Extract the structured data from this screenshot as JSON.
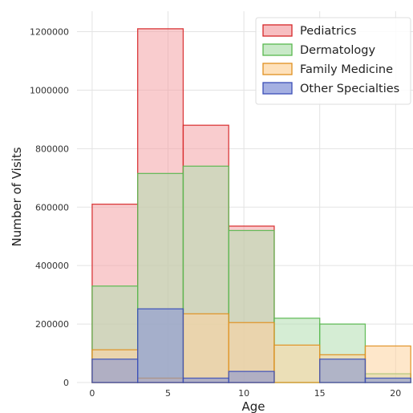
{
  "chart_data": {
    "type": "histogram",
    "xlabel": "Age",
    "ylabel": "Number of Visits",
    "xlim": [
      -1,
      21.2
    ],
    "ylim": [
      0,
      1270000
    ],
    "xticks": [
      0,
      5,
      10,
      15,
      20
    ],
    "yticks": [
      0,
      200000,
      400000,
      600000,
      800000,
      1000000,
      1200000
    ],
    "bin_edges": [
      0,
      3,
      6,
      9,
      12,
      15,
      18,
      21
    ],
    "grid": true,
    "legend_position": "top-right",
    "series": [
      {
        "name": "Pediatrics",
        "fill": "#f4a3a6",
        "edge": "#d62728",
        "values": [
          610000,
          1210000,
          880000,
          535000,
          0,
          0,
          0
        ]
      },
      {
        "name": "Dermatology",
        "fill": "#b2dfb0",
        "edge": "#59b84f",
        "values": [
          330000,
          715000,
          740000,
          520000,
          220000,
          200000,
          30000
        ]
      },
      {
        "name": "Family Medicine",
        "fill": "#fdd49e",
        "edge": "#e09020",
        "values": [
          112000,
          15000,
          235000,
          205000,
          128000,
          95000,
          125000
        ]
      },
      {
        "name": "Other Specialties",
        "fill": "#7f8fd6",
        "edge": "#3b4fb8",
        "values": [
          80000,
          252000,
          15000,
          38000,
          0,
          80000,
          15000
        ]
      }
    ]
  }
}
